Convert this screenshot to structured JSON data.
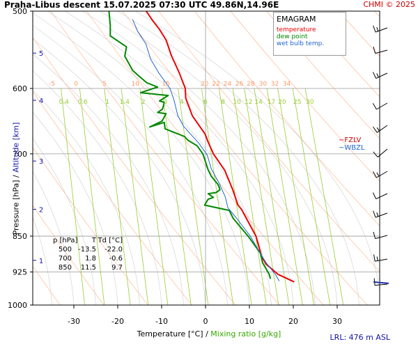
{
  "header": {
    "title": "Praha-Libus   descent   15.07.2025 07:30 UTC  49.86N,14.96E",
    "credit": "CHMI © 2025"
  },
  "axes": {
    "ylabel_pressure": "Pressure [hPa]  /",
    "ylabel_altitude": "Altitude [km]",
    "xlabel_temperature": "Temperature [°C]  /",
    "xlabel_mixing": "Mixing ratio [g/kg]",
    "lrl": "LRL: 476 m ASL"
  },
  "legend": {
    "heading": "EMAGRAM",
    "temperature": "temperature",
    "dewpoint": "dew point",
    "wetbulb": "wet bulb temp."
  },
  "levels": {
    "fzlv": "FZLV",
    "wbzl": "WBZL"
  },
  "table": {
    "headers": [
      "p [hPa]",
      "T",
      "Td [°C]"
    ],
    "rows": [
      [
        "500",
        "-13.5",
        "-22.0"
      ],
      [
        "700",
        "1.8",
        "-0.6"
      ],
      [
        "850",
        "11.5",
        "9.7"
      ]
    ]
  },
  "colors": {
    "temperature": "#ee0000",
    "dewpoint": "#008800",
    "wetbulb": "#2266cc",
    "dry_adiabat": "#ff9966",
    "mixing_ratio": "#99cc33",
    "altitude_labels": "#1111aa",
    "grid": "#999999"
  },
  "chart_data": {
    "type": "line",
    "title": "EMAGRAM",
    "xlabel": "Temperature [°C]  /  Mixing ratio [g/kg]",
    "ylabel": "Pressure [hPa]  /  Altitude [km]",
    "y_scale": "log",
    "ylim": [
      1000,
      500
    ],
    "xlim": [
      -39,
      39
    ],
    "grid": true,
    "legend_position": "top-right",
    "x_ticks": [
      -30,
      -20,
      -10,
      0,
      10,
      20,
      30
    ],
    "pressure_ticks": [
      500,
      600,
      700,
      850,
      925,
      1000
    ],
    "altitude_ticks": [
      {
        "label": "5",
        "p": 552
      },
      {
        "label": "4",
        "p": 617
      },
      {
        "label": "3",
        "p": 712
      },
      {
        "label": "2",
        "p": 798
      },
      {
        "label": "1",
        "p": 900
      }
    ],
    "dry_adiabat_labels": [
      "-5",
      "0",
      "5",
      "10",
      "15",
      "20",
      "22",
      "24",
      "26",
      "28",
      "30",
      "32",
      "34"
    ],
    "mixing_ratio_labels": [
      "0.4",
      "0.6",
      "1",
      "1.4",
      "2",
      "3",
      "4",
      "6",
      "8",
      "10",
      "12",
      "14",
      "17",
      "20",
      "25",
      "30"
    ],
    "series": [
      {
        "name": "temperature",
        "points": [
          [
            20.2,
            947
          ],
          [
            16.5,
            930
          ],
          [
            13.8,
            908
          ],
          [
            12.8,
            892
          ],
          [
            11.5,
            850
          ],
          [
            8.2,
            798
          ],
          [
            7.4,
            790
          ],
          [
            6.2,
            762
          ],
          [
            4.4,
            728
          ],
          [
            1.8,
            700
          ],
          [
            0.6,
            681
          ],
          [
            -0.1,
            668
          ],
          [
            -3.0,
            640
          ],
          [
            -4.5,
            614
          ],
          [
            -4.6,
            600
          ],
          [
            -6.0,
            578
          ],
          [
            -7.8,
            555
          ],
          [
            -9.0,
            535
          ],
          [
            -10.5,
            522
          ],
          [
            -12.2,
            510
          ],
          [
            -13.5,
            500
          ]
        ]
      },
      {
        "name": "dew point",
        "points": [
          [
            14.8,
            940
          ],
          [
            14.5,
            930
          ],
          [
            13.0,
            905
          ],
          [
            12.5,
            885
          ],
          [
            9.7,
            850
          ],
          [
            6.3,
            815
          ],
          [
            5.4,
            800
          ],
          [
            -0.2,
            790
          ],
          [
            0.6,
            779
          ],
          [
            1.8,
            776
          ],
          [
            0.6,
            769
          ],
          [
            2.4,
            767
          ],
          [
            3.3,
            762
          ],
          [
            3.0,
            755
          ],
          [
            2.8,
            752
          ],
          [
            1.3,
            738
          ],
          [
            0.6,
            727
          ],
          [
            -0.6,
            700
          ],
          [
            -1.9,
            687
          ],
          [
            -4.0,
            678
          ],
          [
            -4.8,
            672
          ],
          [
            -9.2,
            660
          ],
          [
            -9.3,
            655
          ],
          [
            -9.4,
            650
          ],
          [
            -12.7,
            657
          ],
          [
            -9.9,
            648
          ],
          [
            -9.0,
            637
          ],
          [
            -10.9,
            635
          ],
          [
            -9.8,
            630
          ],
          [
            -9.4,
            620
          ],
          [
            -10.5,
            618
          ],
          [
            -8.5,
            610
          ],
          [
            -14.8,
            606
          ],
          [
            -10.9,
            598
          ],
          [
            -13.4,
            592
          ],
          [
            -15.3,
            582
          ],
          [
            -16.6,
            575
          ],
          [
            -18.4,
            556
          ],
          [
            -18.0,
            544
          ],
          [
            -21.7,
            530
          ],
          [
            -21.7,
            517
          ],
          [
            -22.0,
            500
          ]
        ]
      },
      {
        "name": "wet bulb temp.",
        "points": [
          [
            16.8,
            945
          ],
          [
            15.9,
            930
          ],
          [
            13.8,
            905
          ],
          [
            12.8,
            890
          ],
          [
            10.2,
            850
          ],
          [
            7.1,
            815
          ],
          [
            5.1,
            795
          ],
          [
            4.5,
            775
          ],
          [
            3.1,
            750
          ],
          [
            1.3,
            725
          ],
          [
            0.4,
            702
          ],
          [
            -1.5,
            683
          ],
          [
            -5.0,
            656
          ],
          [
            -6.3,
            640
          ],
          [
            -7.2,
            616
          ],
          [
            -8.1,
            600
          ],
          [
            -10.7,
            578
          ],
          [
            -12.5,
            560
          ],
          [
            -13.6,
            540
          ],
          [
            -15.4,
            525
          ],
          [
            -16.6,
            510
          ]
        ]
      }
    ]
  }
}
